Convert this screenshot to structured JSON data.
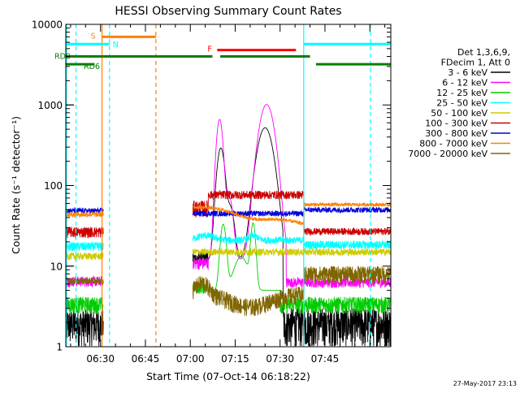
{
  "chart_data": {
    "type": "line",
    "title": "HESSI Observing Summary Count Rates",
    "xlabel": "Start Time (07-Oct-14 06:18:22)",
    "ylabel": "Count Rate (s⁻¹ detector⁻¹)",
    "yscale": "log",
    "ylim": [
      1,
      10000
    ],
    "xlim_minutes": [
      378.4,
      487
    ],
    "x_ticks": [
      {
        "t": 390,
        "label": "06:30"
      },
      {
        "t": 405,
        "label": "06:45"
      },
      {
        "t": 420,
        "label": "07:00"
      },
      {
        "t": 435,
        "label": "07:15"
      },
      {
        "t": 450,
        "label": "07:30"
      },
      {
        "t": 465,
        "label": "07:45"
      }
    ],
    "y_ticks": [
      {
        "v": 1,
        "label": "1"
      },
      {
        "v": 10,
        "label": "10"
      },
      {
        "v": 100,
        "label": "100"
      },
      {
        "v": 1000,
        "label": "1000"
      },
      {
        "v": 10000,
        "label": "10000"
      }
    ],
    "legend_header": [
      "Det 1,3,6,9,",
      "FDecim 1, Att 0"
    ],
    "legend_position": "right",
    "series": [
      {
        "name": "3 - 6 keV",
        "color": "#000000"
      },
      {
        "name": "6 - 12 keV",
        "color": "#ff00ff"
      },
      {
        "name": "12 - 25 keV",
        "color": "#00cc00"
      },
      {
        "name": "25 - 50 keV",
        "color": "#00ffff"
      },
      {
        "name": "50 - 100 keV",
        "color": "#cccc00"
      },
      {
        "name": "100 - 300 keV",
        "color": "#cc0000"
      },
      {
        "name": "300 - 800 keV",
        "color": "#0000dd"
      },
      {
        "name": "800 - 7000 keV",
        "color": "#ff8000"
      },
      {
        "name": "7000 - 20000 keV",
        "color": "#806600"
      }
    ],
    "segments": [
      {
        "label": "S",
        "color": "#ff8000",
        "level": 7000,
        "start": 390.5,
        "end": 408.5
      },
      {
        "label": "N",
        "color": "#00ffff",
        "level": 5700,
        "start": 378.4,
        "end": 393.0
      },
      {
        "label": "N",
        "color": "#00ffff",
        "level": 5700,
        "start": 457.8,
        "end": 487
      },
      {
        "label": "F",
        "color": "#ff0000",
        "level": 4800,
        "start": 429.0,
        "end": 455.3
      },
      {
        "label": "RD0",
        "color": "#008000",
        "level": 4000,
        "start": 378.4,
        "end": 408.5
      },
      {
        "label": "RD0",
        "color": "#008000",
        "level": 4000,
        "start": 408.5,
        "end": 427.4
      },
      {
        "label": "RD0",
        "color": "#008000",
        "level": 4000,
        "start": 430.0,
        "end": 460.0
      },
      {
        "label": "RD6",
        "color": "#008000",
        "level": 3200,
        "start": 378.4,
        "end": 388.0
      },
      {
        "label": "RD6",
        "color": "#008000",
        "level": 3200,
        "start": 462.0,
        "end": 487
      }
    ],
    "night_markers": [
      {
        "t": 378.6,
        "color": "#00ffff",
        "style": "solid"
      },
      {
        "t": 381.8,
        "color": "#00ffff",
        "style": "dashed"
      },
      {
        "t": 393.0,
        "color": "#00ffff",
        "style": "dashed"
      },
      {
        "t": 408.5,
        "color": "#ff8000",
        "style": "dashed"
      },
      {
        "t": 390.5,
        "color": "#ff8000",
        "style": "solid"
      },
      {
        "t": 457.9,
        "color": "#00ffff",
        "style": "solid"
      },
      {
        "t": 480.2,
        "color": "#00ffff",
        "style": "dashed"
      }
    ],
    "data_windows": [
      [
        378.4,
        391.0
      ],
      [
        420.8,
        487
      ]
    ],
    "approx_levels": {
      "3 - 6 keV": {
        "before_saa": 1.6,
        "peak1_t": 430.2,
        "peak1": 280,
        "peak2_t": 445.0,
        "peak2": 510,
        "after": 1.5
      },
      "6 - 12 keV": {
        "before_saa": 6.5,
        "peak1_t": 429.8,
        "peak1": 650,
        "peak2_t": 445.5,
        "peak2": 1000,
        "after": 6
      },
      "12 - 25 keV": {
        "before_saa": 3.2,
        "peak1_t": 431.0,
        "peak1": 28,
        "peak2_t": 441.0,
        "peak2": 28,
        "after": 3.2
      },
      "25 - 50 keV": {
        "before_saa": 18,
        "mid": 21,
        "after": 18
      },
      "50 - 100 keV": {
        "before_saa": 14,
        "mid": 15,
        "after": 15
      },
      "100 - 300 keV": {
        "before_saa": 28,
        "mid": 75,
        "after": 27
      },
      "300 - 800 keV": {
        "before_saa": 50,
        "mid": 45,
        "after": 50
      },
      "800 - 7000 keV": {
        "before_saa": 45,
        "mid": 40,
        "after": 58
      },
      "7000 - 20000 keV": {
        "before_saa": 6.5,
        "mid": 3.5,
        "after": 8
      }
    }
  },
  "footer": {
    "timestamp": "27-May-2017 23:13"
  }
}
